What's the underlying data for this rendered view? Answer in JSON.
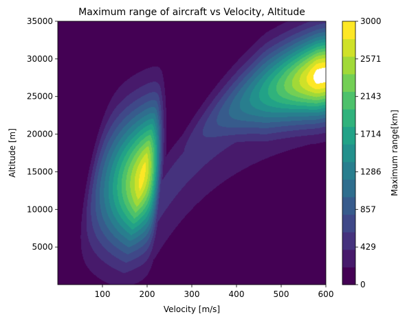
{
  "chart_data": {
    "type": "heatmap",
    "subtype": "filled-contour",
    "title": "Maximum range of aircraft vs Velocity, Altitude",
    "xlabel": "Velocity [m/s]",
    "ylabel": "Altitude [m]",
    "xlim": [
      0,
      600
    ],
    "ylim": [
      0,
      35000
    ],
    "x_ticks": [
      100,
      200,
      300,
      400,
      500,
      600
    ],
    "y_ticks": [
      5000,
      10000,
      15000,
      20000,
      25000,
      30000,
      35000
    ],
    "colorbar": {
      "label": "Maximum range[km]",
      "range": [
        0,
        3000
      ],
      "ticks": [
        "0",
        "429",
        "857",
        "1286",
        "1714",
        "2143",
        "2571",
        "3000"
      ],
      "levels": 15,
      "colormap": "viridis",
      "above_max_color": "#ffffff"
    },
    "features": [
      {
        "kind": "peak",
        "velocity": 190,
        "altitude": 14500,
        "max_range_km": 2900
      },
      {
        "kind": "peak",
        "velocity": 570,
        "altitude": 28000,
        "max_range_km": 3050
      },
      {
        "kind": "cutoff",
        "description_velocity_min": 30,
        "max_range_km": 0
      }
    ]
  }
}
